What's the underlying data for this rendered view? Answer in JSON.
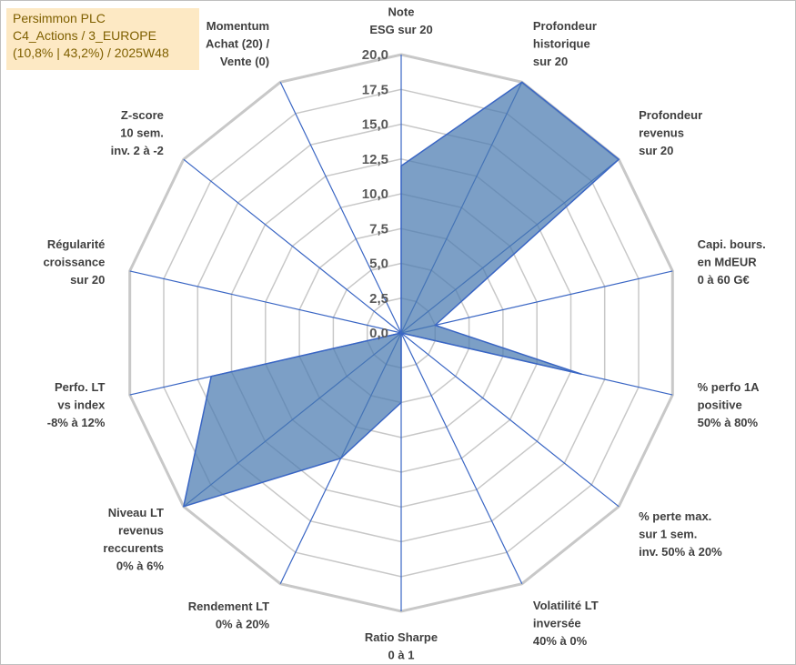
{
  "header": {
    "line1": "Persimmon PLC",
    "line2": "C4_Actions / 3_EUROPE",
    "line3": "(10,8% | 43,2%) / 2025W48"
  },
  "colors": {
    "fill": "#4a7ab0",
    "line": "#3a66c4",
    "grid": "#c8c8c8",
    "title_bg": "#fde9c4",
    "title_text": "#7f6000"
  },
  "chart_data": {
    "type": "radar",
    "rmin": 0,
    "rmax": 20,
    "ticks": [
      "0,0",
      "2,5",
      "5,0",
      "7,5",
      "10,0",
      "12,5",
      "15,0",
      "17,5",
      "20,0"
    ],
    "axes": [
      {
        "label": [
          "Note",
          "ESG sur 20"
        ],
        "value": 12
      },
      {
        "label": [
          "Profondeur",
          "historique",
          "sur 20"
        ],
        "value": 20
      },
      {
        "label": [
          "Profondeur",
          "revenus",
          "sur 20"
        ],
        "value": 20
      },
      {
        "label": [
          "Capi. bours.",
          "en MdEUR",
          "0 à 60 G€"
        ],
        "value": 2.5
      },
      {
        "label": [
          "% perfo 1A",
          "positive",
          "50% à 80%"
        ],
        "value": 13.3
      },
      {
        "label": [
          "% perte max.",
          "sur 1 sem.",
          "inv. 50% à 20%"
        ],
        "value": 0
      },
      {
        "label": [
          "Volatilité LT",
          "inversée",
          "40% à 0%"
        ],
        "value": 0
      },
      {
        "label": [
          "Ratio Sharpe",
          "0 à 1"
        ],
        "value": 5
      },
      {
        "label": [
          "Rendement LT",
          "0% à 20%"
        ],
        "value": 10
      },
      {
        "label": [
          "Niveau LT",
          "revenus",
          "reccurents",
          "0% à 6%"
        ],
        "value": 20
      },
      {
        "label": [
          "Perfo. LT",
          "vs index",
          "-8% à 12%"
        ],
        "value": 14
      },
      {
        "label": [
          "Régularité",
          "croissance",
          "sur 20"
        ],
        "value": 0
      },
      {
        "label": [
          "Z-score",
          "10 sem.",
          "inv. 2 à -2"
        ],
        "value": 0
      },
      {
        "label": [
          "Momentum",
          "Achat (20) /",
          "Vente (0)"
        ],
        "value": 0
      }
    ]
  }
}
